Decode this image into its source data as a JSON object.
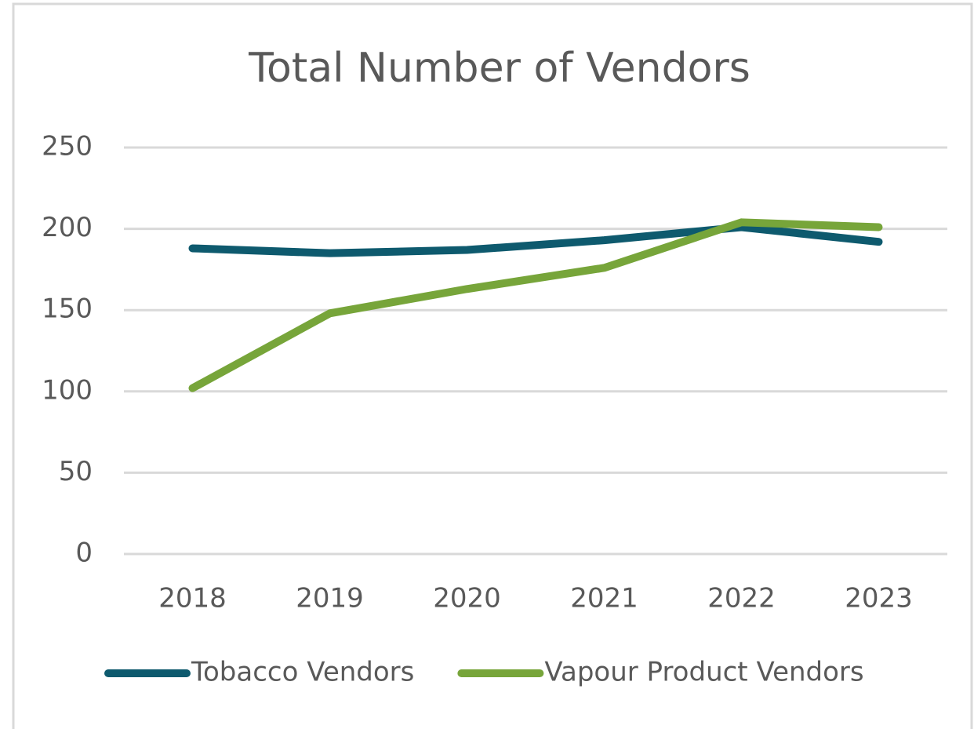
{
  "chart_data": {
    "type": "line",
    "title": "Total Number of Vendors",
    "categories": [
      "2018",
      "2019",
      "2020",
      "2021",
      "2022",
      "2023"
    ],
    "series": [
      {
        "name": "Tobacco Vendors",
        "color": "#0e5a6e",
        "values": [
          188,
          185,
          187,
          193,
          201,
          192
        ]
      },
      {
        "name": "Vapour Product Vendors",
        "color": "#77a53a",
        "values": [
          102,
          148,
          163,
          176,
          204,
          201
        ]
      }
    ],
    "ylim": [
      0,
      250
    ],
    "yticks": [
      0,
      50,
      100,
      150,
      200,
      250
    ],
    "grid": true,
    "legend": "bottom"
  }
}
